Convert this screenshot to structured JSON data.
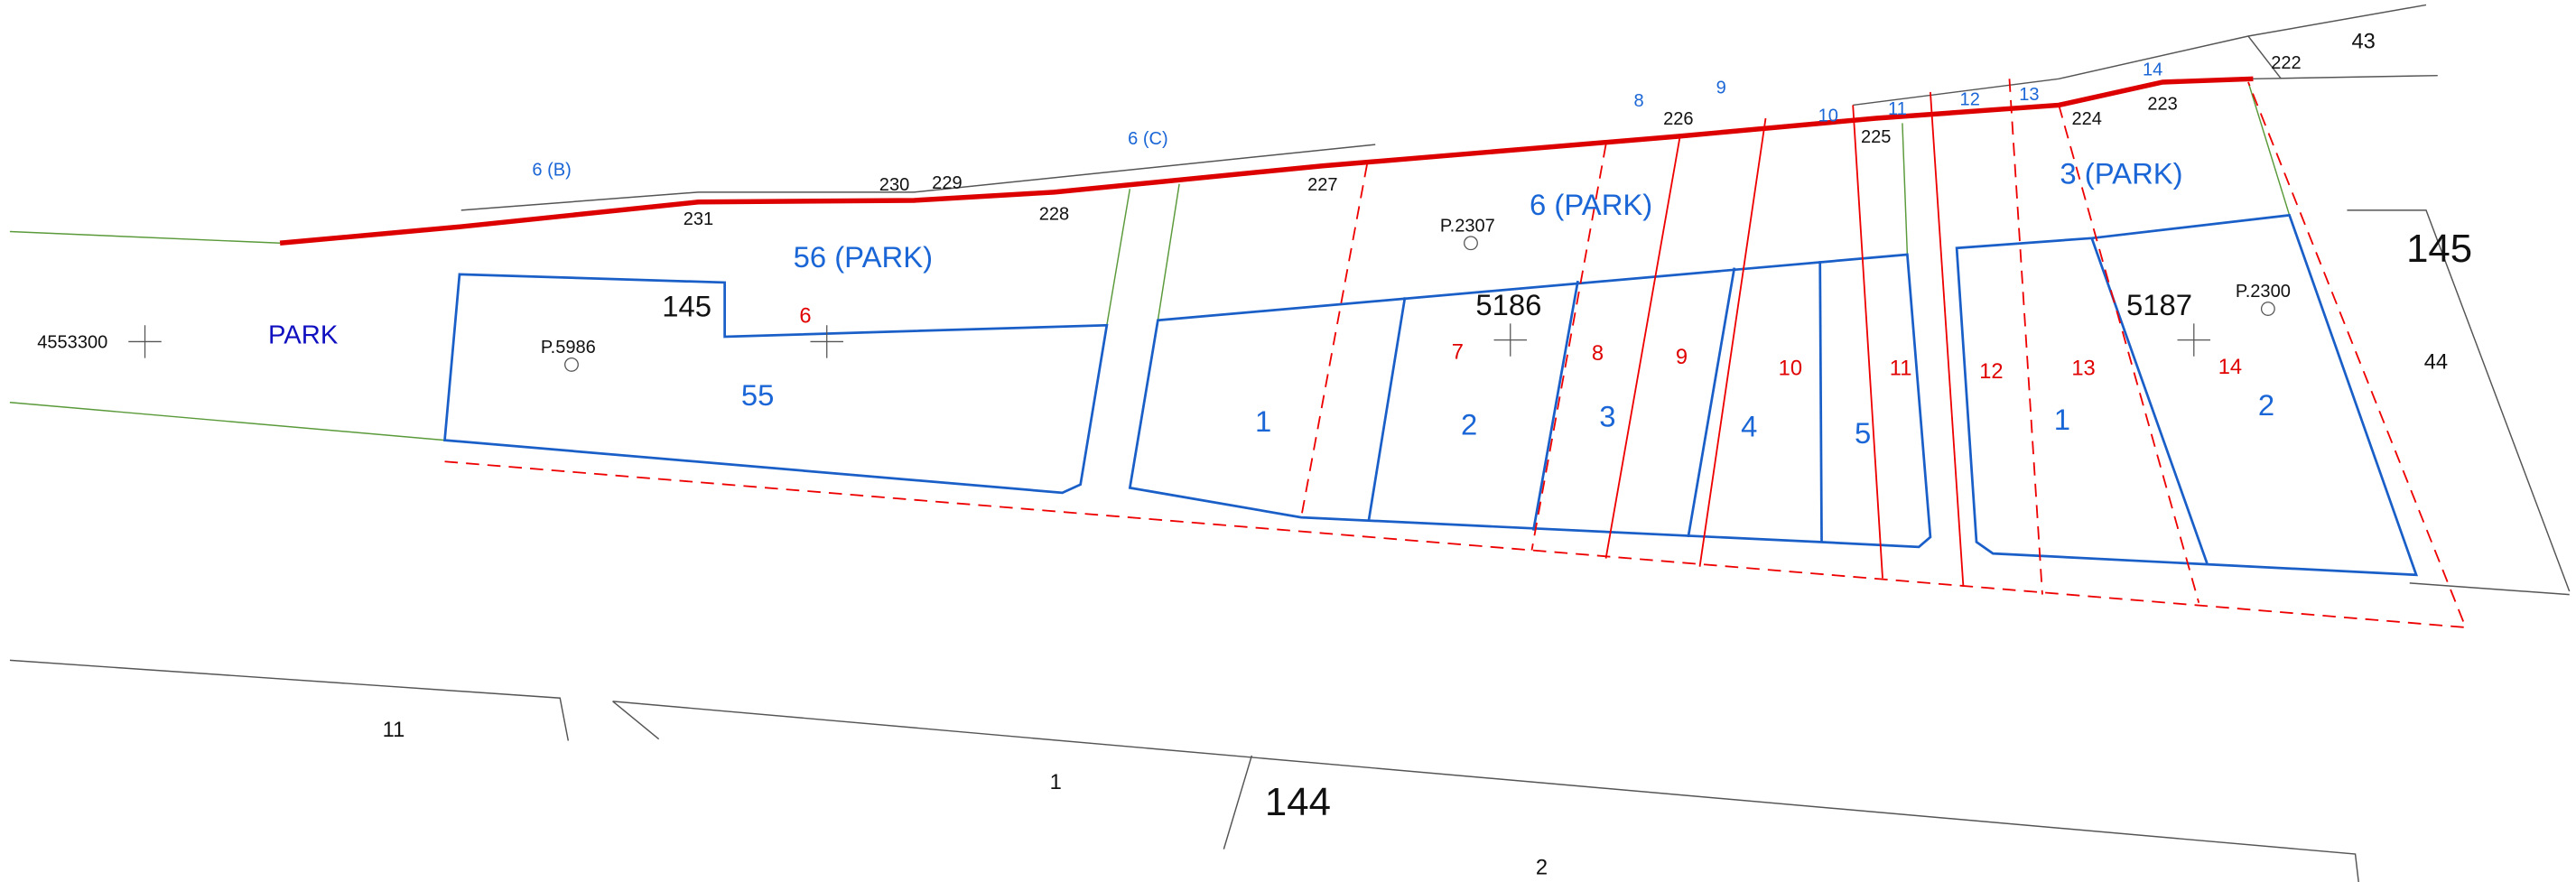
{
  "labels": {
    "black": [
      "43",
      "222",
      "224",
      "223",
      "225",
      "226",
      "227",
      "228",
      "230",
      "229",
      "231",
      "145",
      "5186",
      "5187",
      "145",
      "44",
      "4553300",
      "P.5986",
      "P.2307",
      "P.2300",
      "11",
      "1",
      "144",
      "2"
    ],
    "blue": [
      "6 (B)",
      "6 (C)",
      "8",
      "9",
      "10",
      "11",
      "12",
      "13",
      "14",
      "56 (PARK)",
      "PARK",
      "55",
      "6 (PARK)",
      "3 (PARK)",
      "1",
      "2",
      "3",
      "4",
      "5",
      "1",
      "2"
    ],
    "red": [
      "6",
      "7",
      "8",
      "9",
      "10",
      "11",
      "12",
      "13",
      "14"
    ]
  }
}
